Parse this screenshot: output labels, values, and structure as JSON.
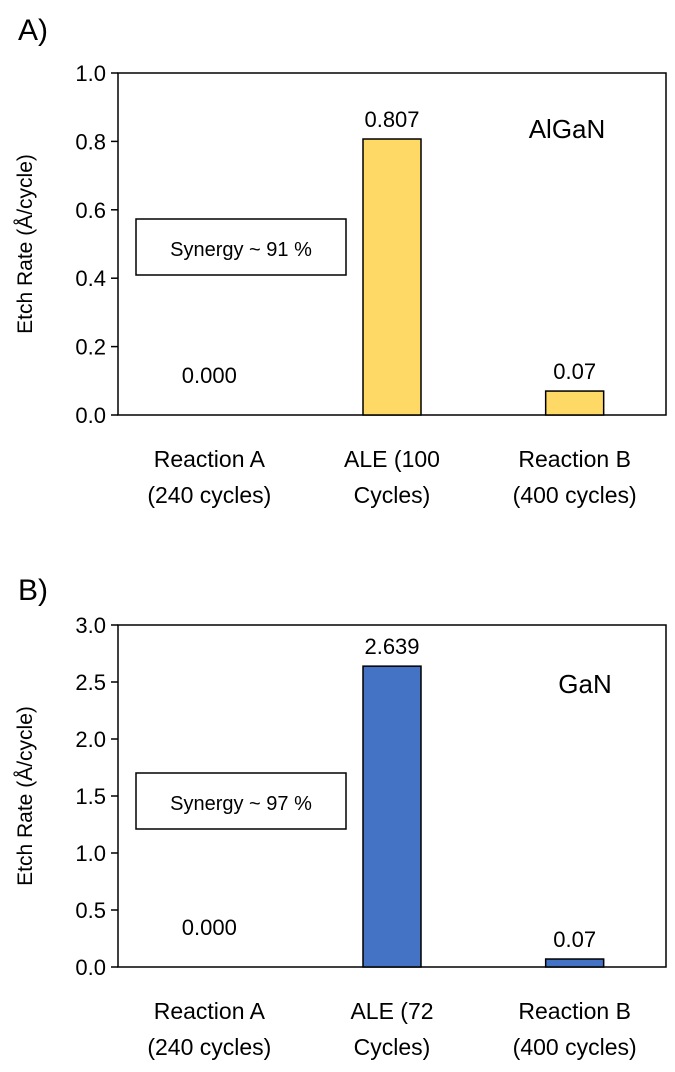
{
  "chart_data": [
    {
      "type": "bar",
      "panel_label": "A)",
      "categories": [
        [
          "Reaction A",
          "(240 cycles)"
        ],
        [
          "ALE (100",
          "Cycles)"
        ],
        [
          "Reaction B",
          "(400 cycles)"
        ]
      ],
      "values": [
        0.0,
        0.807,
        0.07
      ],
      "value_labels": [
        "0.000",
        "0.807",
        "0.07"
      ],
      "ylabel": "Etch Rate (Å/cycle)",
      "ylim": [
        0,
        1.0
      ],
      "yticks": [
        "0.0",
        "0.2",
        "0.4",
        "0.6",
        "0.8",
        "1.0"
      ],
      "ytick_values": [
        0,
        0.2,
        0.4,
        0.6,
        0.8,
        1.0
      ],
      "material_label": "AlGaN",
      "annotation": "Synergy ~ 91 %",
      "bar_color": "#FFD966",
      "grid": false,
      "legend": "none"
    },
    {
      "type": "bar",
      "panel_label": "B)",
      "categories": [
        [
          "Reaction A",
          "(240 cycles)"
        ],
        [
          "ALE (72",
          "Cycles)"
        ],
        [
          "Reaction B",
          "(400 cycles)"
        ]
      ],
      "values": [
        0.0,
        2.639,
        0.07
      ],
      "value_labels": [
        "0.000",
        "2.639",
        "0.07"
      ],
      "ylabel": "Etch Rate (Å/cycle)",
      "ylim": [
        0,
        3.0
      ],
      "yticks": [
        "0.0",
        "0.5",
        "1.0",
        "1.5",
        "2.0",
        "2.5",
        "3.0"
      ],
      "ytick_values": [
        0,
        0.5,
        1.0,
        1.5,
        2.0,
        2.5,
        3.0
      ],
      "material_label": "GaN",
      "annotation": "Synergy ~ 97 %",
      "bar_color": "#4472C4",
      "grid": false,
      "legend": "none"
    }
  ]
}
